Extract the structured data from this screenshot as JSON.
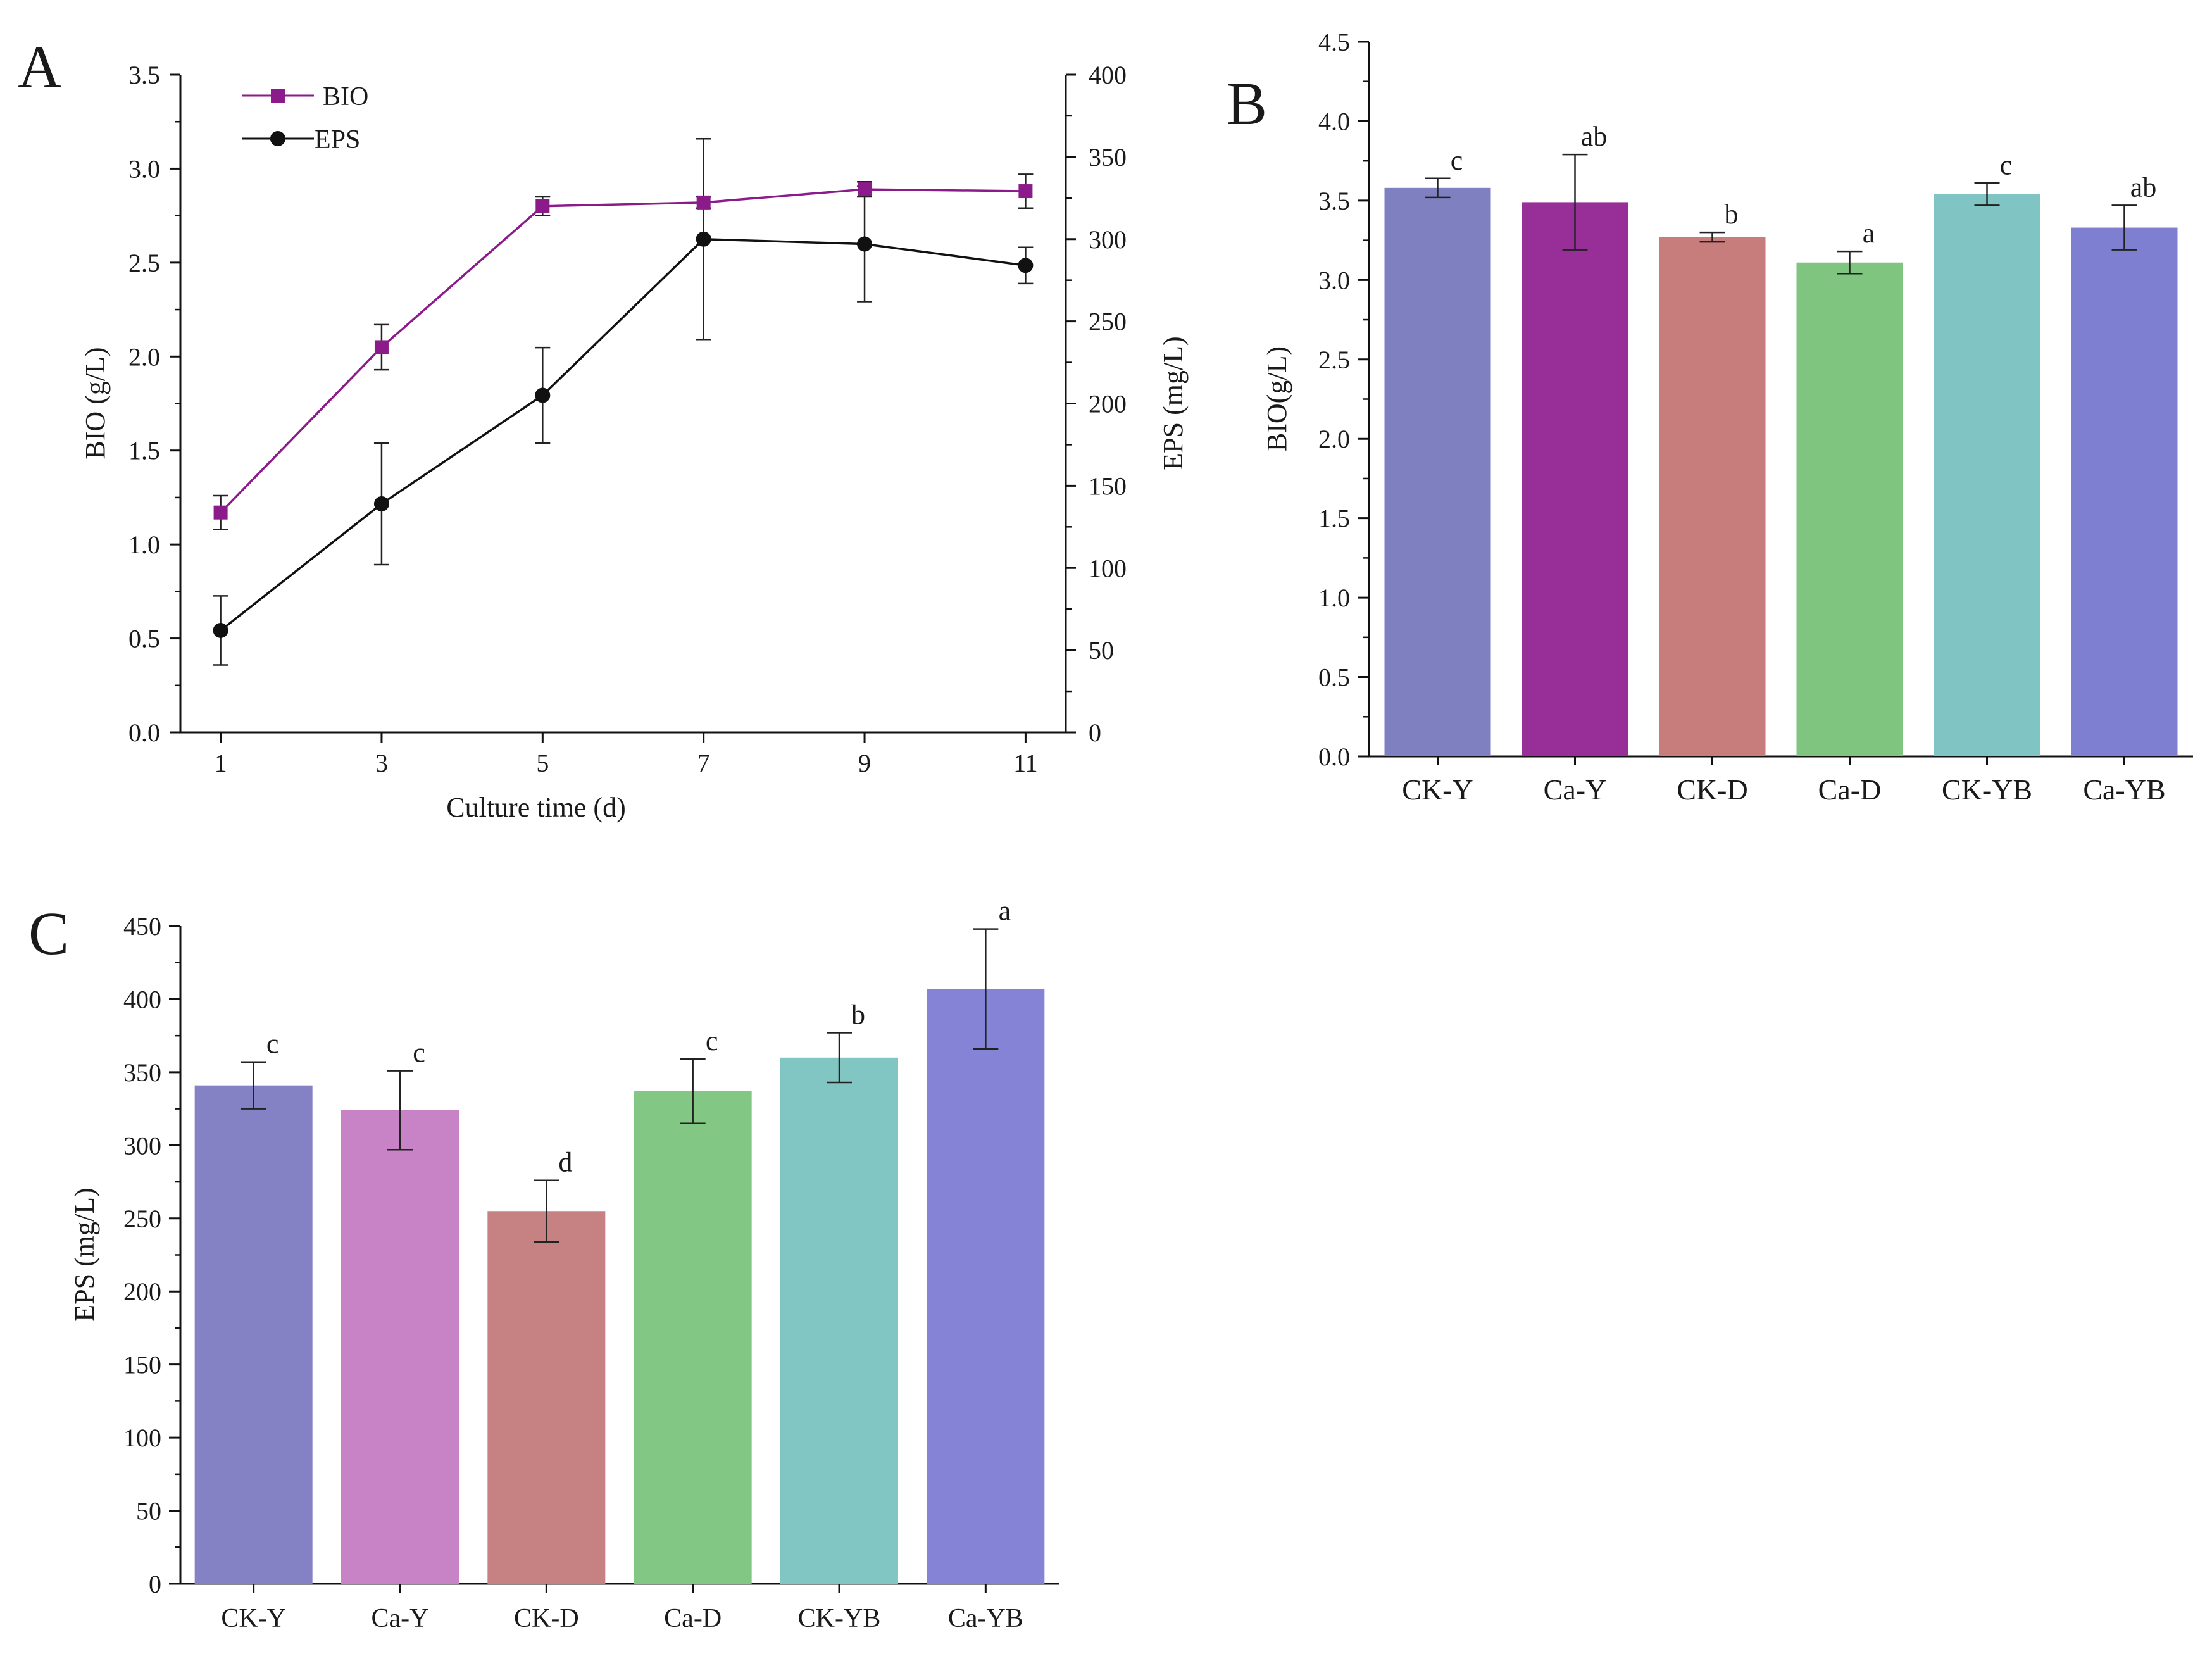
{
  "charts": [
    {
      "panel": "A",
      "type": "line",
      "xlabel": "Culture time (d)",
      "ylabel": "BIO (g/L)",
      "y2label": "EPS (mg/L)",
      "x": [
        1,
        3,
        5,
        7,
        9,
        11
      ],
      "xlim": [
        0.5,
        11.5
      ],
      "ylim": [
        0,
        3.5
      ],
      "y2lim": [
        0,
        400
      ],
      "yticks": [
        "0.0",
        "0.5",
        "1.0",
        "1.5",
        "2.0",
        "2.5",
        "3.0",
        "3.5"
      ],
      "y2ticks": [
        "0",
        "50",
        "100",
        "150",
        "200",
        "250",
        "300",
        "350",
        "400"
      ],
      "series": [
        {
          "name": "BIO",
          "axis": "left",
          "marker": "square",
          "color": "#8b1a8b",
          "values": [
            1.17,
            2.05,
            2.8,
            2.82,
            2.89,
            2.88
          ],
          "errors": [
            0.09,
            0.12,
            0.05,
            0.03,
            0.04,
            0.09
          ]
        },
        {
          "name": "EPS",
          "axis": "right",
          "marker": "circle",
          "color": "#111111",
          "values": [
            62,
            139,
            205,
            300,
            297,
            284
          ],
          "errors": [
            21,
            37,
            29,
            61,
            35,
            11
          ]
        }
      ]
    },
    {
      "panel": "B",
      "type": "bar",
      "ylabel": "BIO(g/L)",
      "categories": [
        "CK-Y",
        "Ca-Y",
        "CK-D",
        "Ca-D",
        "CK-YB",
        "Ca-YB"
      ],
      "values": [
        3.58,
        3.49,
        3.27,
        3.11,
        3.54,
        3.33
      ],
      "errors": [
        0.06,
        0.3,
        0.03,
        0.07,
        0.07,
        0.14
      ],
      "labels": [
        "c",
        "ab",
        "b",
        "a",
        "c",
        "ab"
      ],
      "colors": [
        "#7f80bf",
        "#982e98",
        "#c67d7c",
        "#7fc47f",
        "#80c5c3",
        "#7e7fd1"
      ],
      "ylim": [
        0,
        4.5
      ],
      "yticks": [
        "0.0",
        "0.5",
        "1.0",
        "1.5",
        "2.0",
        "2.5",
        "3.0",
        "3.5",
        "4.0",
        "4.5"
      ]
    },
    {
      "panel": "C",
      "type": "bar",
      "ylabel": "EPS (mg/L)",
      "categories": [
        "CK-Y",
        "Ca-Y",
        "CK-D",
        "Ca-D",
        "CK-YB",
        "Ca-YB"
      ],
      "values": [
        341,
        324,
        255,
        337,
        360,
        407
      ],
      "errors": [
        16,
        27,
        21,
        22,
        17,
        41
      ],
      "labels": [
        "c",
        "c",
        "d",
        "c",
        "b",
        "a"
      ],
      "colors": [
        "#8482c5",
        "#c883c6",
        "#c68282",
        "#82c784",
        "#82c6c4",
        "#8483d6"
      ],
      "ylim": [
        0,
        450
      ],
      "yticks": [
        "0",
        "50",
        "100",
        "150",
        "200",
        "250",
        "300",
        "350",
        "400",
        "450"
      ]
    }
  ]
}
